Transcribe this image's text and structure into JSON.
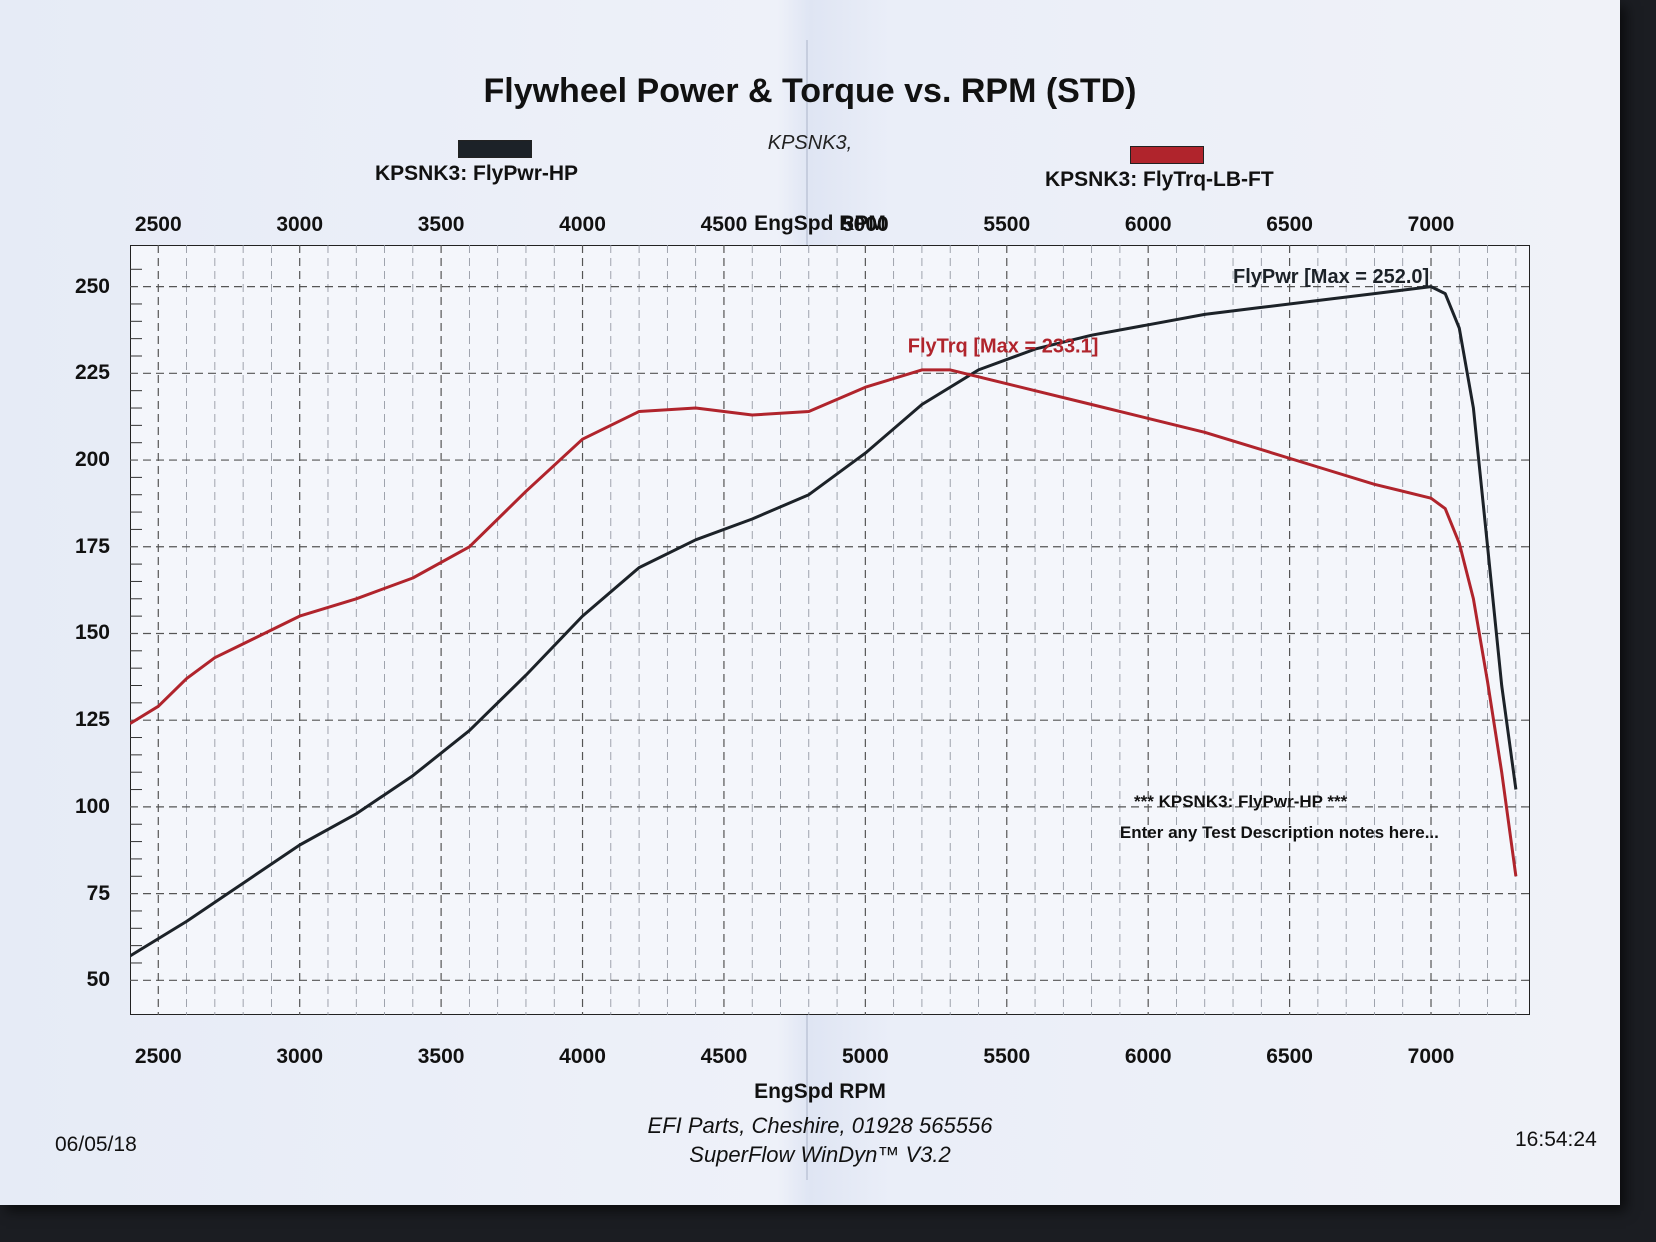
{
  "chart_data": {
    "type": "line",
    "title": "Flywheel Power & Torque vs. RPM (STD)",
    "subtitle": "KPSNK3,",
    "xlabel": "EngSpd RPM",
    "x_ticks": [
      2500,
      3000,
      3500,
      4000,
      4500,
      5000,
      5500,
      6000,
      6500,
      7000
    ],
    "y_ticks": [
      50,
      75,
      100,
      125,
      150,
      175,
      200,
      225,
      250
    ],
    "xlim": [
      2400,
      7350
    ],
    "ylim": [
      40,
      262
    ],
    "grid": true,
    "series": [
      {
        "name": "KPSNK3: FlyPwr-HP",
        "color": "#1c2228",
        "points": [
          [
            2400,
            57
          ],
          [
            2600,
            67
          ],
          [
            2800,
            78
          ],
          [
            3000,
            89
          ],
          [
            3200,
            98
          ],
          [
            3400,
            109
          ],
          [
            3600,
            122
          ],
          [
            3800,
            138
          ],
          [
            4000,
            155
          ],
          [
            4200,
            169
          ],
          [
            4400,
            177
          ],
          [
            4600,
            183
          ],
          [
            4800,
            190
          ],
          [
            5000,
            202
          ],
          [
            5200,
            216
          ],
          [
            5400,
            226
          ],
          [
            5600,
            232
          ],
          [
            5800,
            236
          ],
          [
            6000,
            239
          ],
          [
            6200,
            242
          ],
          [
            6400,
            244
          ],
          [
            6600,
            246
          ],
          [
            6800,
            248
          ],
          [
            6900,
            249
          ],
          [
            7000,
            250
          ],
          [
            7050,
            248
          ],
          [
            7100,
            238
          ],
          [
            7150,
            215
          ],
          [
            7200,
            175
          ],
          [
            7250,
            135
          ],
          [
            7300,
            105
          ]
        ]
      },
      {
        "name": "KPSNK3: FlyTrq-LB-FT",
        "color": "#b0242c",
        "points": [
          [
            2400,
            124
          ],
          [
            2500,
            129
          ],
          [
            2600,
            137
          ],
          [
            2700,
            143
          ],
          [
            2800,
            147
          ],
          [
            2900,
            151
          ],
          [
            3000,
            155
          ],
          [
            3200,
            160
          ],
          [
            3400,
            166
          ],
          [
            3600,
            175
          ],
          [
            3800,
            191
          ],
          [
            4000,
            206
          ],
          [
            4200,
            214
          ],
          [
            4400,
            215
          ],
          [
            4600,
            213
          ],
          [
            4800,
            214
          ],
          [
            5000,
            221
          ],
          [
            5200,
            226
          ],
          [
            5300,
            226
          ],
          [
            5400,
            224
          ],
          [
            5600,
            220
          ],
          [
            5800,
            216
          ],
          [
            6000,
            212
          ],
          [
            6200,
            208
          ],
          [
            6400,
            203
          ],
          [
            6600,
            198
          ],
          [
            6800,
            193
          ],
          [
            7000,
            189
          ],
          [
            7050,
            186
          ],
          [
            7100,
            176
          ],
          [
            7150,
            160
          ],
          [
            7200,
            136
          ],
          [
            7250,
            110
          ],
          [
            7300,
            80
          ]
        ]
      }
    ],
    "annotations": [
      "FlyPwr [Max = 252.0]",
      "FlyTrq [Max = 233.1]"
    ]
  },
  "legend": {
    "power_label": "KPSNK3: FlyPwr-HP",
    "torque_label": "KPSNK3: FlyTrq-LB-FT",
    "power_color": "#1c2228",
    "torque_color": "#b0242c"
  },
  "notes": {
    "line1": "*** KPSNK3: FlyPwr-HP       ***",
    "line2": "Enter any Test Description notes here..."
  },
  "footer": {
    "date": "06/05/18",
    "company": "EFI Parts, Cheshire, 01928 565556",
    "software": "SuperFlow WinDyn™ V3.2",
    "time": "16:54:24"
  }
}
